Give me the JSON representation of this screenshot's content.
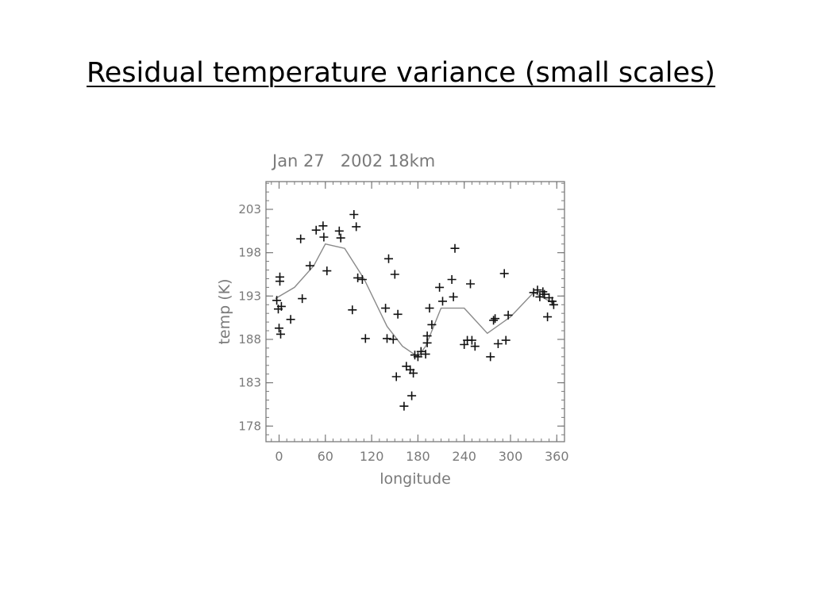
{
  "slide": {
    "title": "Residual temperature variance (small scales)"
  },
  "chart_data": {
    "type": "scatter",
    "title": "Jan 27   2002 18km",
    "xlabel": "longitude",
    "ylabel": "temp (K)",
    "xlim": [
      -17,
      370
    ],
    "ylim": [
      176.2,
      206.2
    ],
    "xticks": [
      0,
      60,
      120,
      180,
      240,
      300,
      360
    ],
    "yticks": [
      178,
      183,
      188,
      193,
      198,
      203
    ],
    "grid": false,
    "series": [
      {
        "type": "scatter",
        "marker": "+",
        "points": [
          [
            -3,
            192.5
          ],
          [
            -1,
            191.5
          ],
          [
            0,
            189.3
          ],
          [
            1,
            195.2
          ],
          [
            1,
            194.7
          ],
          [
            2,
            188.6
          ],
          [
            3,
            191.8
          ],
          [
            15,
            190.3
          ],
          [
            28,
            199.6
          ],
          [
            30,
            192.7
          ],
          [
            40,
            196.5
          ],
          [
            48,
            200.6
          ],
          [
            57,
            201.1
          ],
          [
            58,
            199.8
          ],
          [
            62,
            195.9
          ],
          [
            78,
            200.5
          ],
          [
            80,
            199.7
          ],
          [
            95,
            191.4
          ],
          [
            97,
            202.4
          ],
          [
            100,
            201.0
          ],
          [
            102,
            195.1
          ],
          [
            108,
            194.9
          ],
          [
            112,
            188.1
          ],
          [
            138,
            191.6
          ],
          [
            140,
            188.1
          ],
          [
            142,
            197.3
          ],
          [
            148,
            188.0
          ],
          [
            150,
            195.5
          ],
          [
            152,
            183.7
          ],
          [
            154,
            190.9
          ],
          [
            162,
            180.3
          ],
          [
            165,
            184.9
          ],
          [
            170,
            184.5
          ],
          [
            172,
            181.5
          ],
          [
            174,
            184.1
          ],
          [
            176,
            186.2
          ],
          [
            180,
            186.0
          ],
          [
            184,
            186.6
          ],
          [
            190,
            186.3
          ],
          [
            192,
            187.6
          ],
          [
            192,
            188.4
          ],
          [
            195,
            191.6
          ],
          [
            198,
            189.7
          ],
          [
            208,
            194.0
          ],
          [
            212,
            192.4
          ],
          [
            224,
            194.9
          ],
          [
            226,
            192.9
          ],
          [
            228,
            198.5
          ],
          [
            240,
            187.4
          ],
          [
            244,
            187.9
          ],
          [
            248,
            194.4
          ],
          [
            250,
            187.9
          ],
          [
            254,
            187.2
          ],
          [
            274,
            186.0
          ],
          [
            278,
            190.2
          ],
          [
            280,
            190.4
          ],
          [
            284,
            187.5
          ],
          [
            292,
            195.6
          ],
          [
            294,
            187.9
          ],
          [
            297,
            190.8
          ],
          [
            330,
            193.4
          ],
          [
            335,
            193.7
          ],
          [
            338,
            192.9
          ],
          [
            342,
            193.5
          ],
          [
            344,
            193.2
          ],
          [
            348,
            190.6
          ],
          [
            350,
            192.8
          ],
          [
            354,
            192.4
          ],
          [
            356,
            192.0
          ]
        ]
      },
      {
        "type": "line",
        "points": [
          [
            -5,
            192.7
          ],
          [
            20,
            194.0
          ],
          [
            45,
            196.5
          ],
          [
            60,
            199.0
          ],
          [
            85,
            198.5
          ],
          [
            110,
            195.0
          ],
          [
            140,
            189.5
          ],
          [
            160,
            187.2
          ],
          [
            180,
            186.0
          ],
          [
            190,
            187.2
          ],
          [
            210,
            191.6
          ],
          [
            240,
            191.6
          ],
          [
            270,
            188.7
          ],
          [
            300,
            190.6
          ],
          [
            330,
            193.4
          ],
          [
            355,
            192.2
          ]
        ]
      }
    ]
  }
}
